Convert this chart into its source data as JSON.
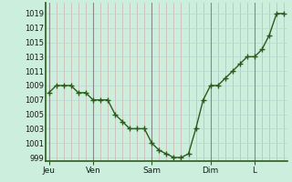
{
  "background_color": "#cceedd",
  "plot_bg_color": "#cceedd",
  "line_color": "#2d5a1b",
  "marker_color": "#2d5a1b",
  "grid_minor_v_color": "#d4b0b0",
  "grid_minor_h_color": "#b8d8d0",
  "grid_major_color": "#888888",
  "x_tick_labels": [
    "Jeu",
    "Ven",
    "Sam",
    "Dim",
    "L"
  ],
  "x_tick_positions": [
    0,
    6,
    14,
    22,
    28
  ],
  "ylim": [
    998.5,
    1020.5
  ],
  "yticks": [
    999,
    1001,
    1003,
    1005,
    1007,
    1009,
    1011,
    1013,
    1015,
    1017,
    1019
  ],
  "day_boundaries": [
    0,
    6,
    14,
    22,
    28
  ],
  "values": [
    1008,
    1009,
    1009,
    1009,
    1008,
    1008,
    1007,
    1007,
    1007,
    1005,
    1004,
    1003,
    1003,
    1003,
    1001,
    1000,
    999.5,
    999,
    999,
    999.5,
    1003,
    1007,
    1009,
    1009,
    1010,
    1011,
    1012,
    1013,
    1013,
    1014,
    1016,
    1019,
    1019
  ],
  "n_minor_v": 33,
  "marker_size": 2.5
}
